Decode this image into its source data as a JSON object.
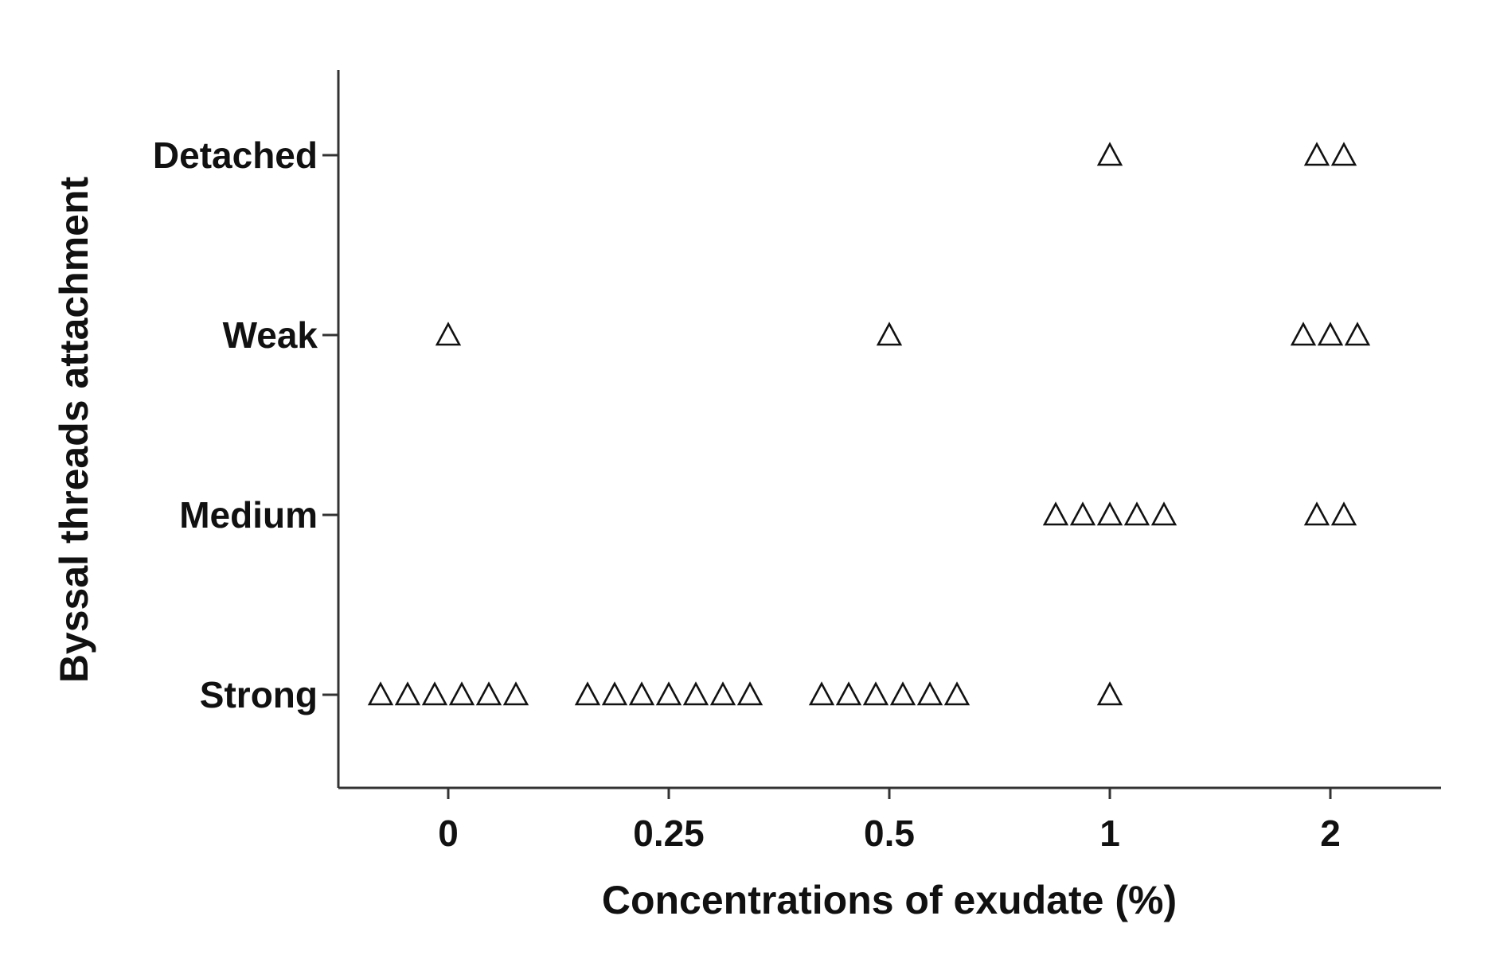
{
  "chart_data": {
    "type": "scatter",
    "title": "",
    "xlabel": "Concentrations of exudate (%)",
    "ylabel": "Byssal threads attachment",
    "x_categories": [
      "0",
      "0.25",
      "0.5",
      "1",
      "2"
    ],
    "y_categories": [
      "Strong",
      "Medium",
      "Weak",
      "Detached"
    ],
    "marker": "open-triangle",
    "grid": false,
    "points": [
      {
        "x": "0",
        "y": "Strong",
        "count": 6
      },
      {
        "x": "0",
        "y": "Weak",
        "count": 1
      },
      {
        "x": "0.25",
        "y": "Strong",
        "count": 7
      },
      {
        "x": "0.5",
        "y": "Strong",
        "count": 6
      },
      {
        "x": "0.5",
        "y": "Weak",
        "count": 1
      },
      {
        "x": "1",
        "y": "Strong",
        "count": 1
      },
      {
        "x": "1",
        "y": "Medium",
        "count": 5
      },
      {
        "x": "1",
        "y": "Detached",
        "count": 1
      },
      {
        "x": "2",
        "y": "Medium",
        "count": 2
      },
      {
        "x": "2",
        "y": "Weak",
        "count": 3
      },
      {
        "x": "2",
        "y": "Detached",
        "count": 2
      }
    ]
  }
}
